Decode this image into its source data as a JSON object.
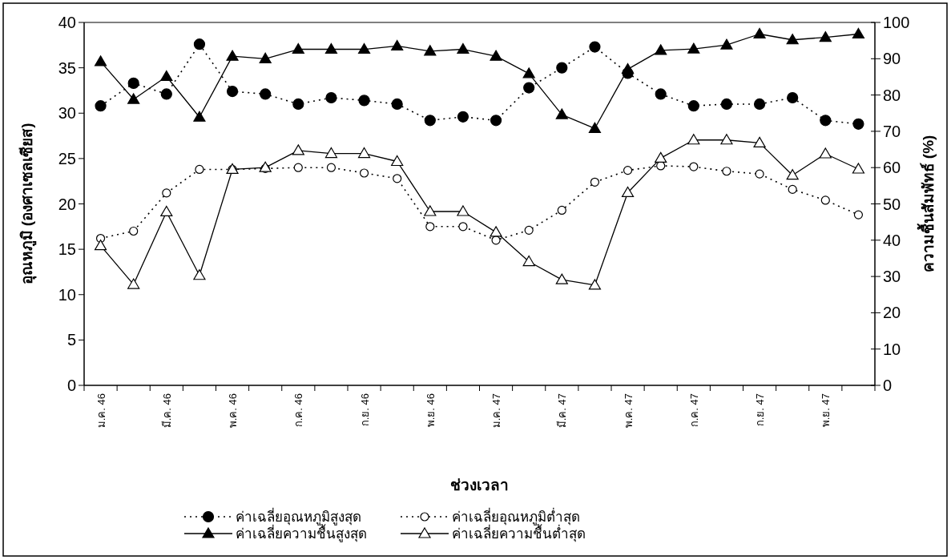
{
  "chart_data": {
    "type": "line",
    "xlabel": "ช่วงเวลา",
    "ylabel": "อุณหภูมิ (องศาเซลเซียส)",
    "y2label": "ความชื้นสัมพัทธ์ (%)",
    "categories": [
      "ม.ค. 46",
      null,
      "มี.ค. 46",
      null,
      "พ.ค. 46",
      null,
      "ก.ค. 46",
      null,
      "ก.ย. 46",
      null,
      "พ.ย. 46",
      null,
      "ม.ค. 47",
      null,
      "มี.ค. 47",
      null,
      "พ.ค. 47",
      null,
      "ก.ค. 47",
      null,
      "ก.ย. 47",
      null,
      "พ.ย. 47",
      null
    ],
    "ylim": [
      0,
      40
    ],
    "yticks": [
      0,
      5,
      10,
      15,
      20,
      25,
      30,
      35,
      40
    ],
    "y2lim": [
      0,
      100
    ],
    "y2ticks": [
      0,
      10,
      20,
      30,
      40,
      50,
      60,
      70,
      80,
      90,
      100
    ],
    "grid": false,
    "legend": "bottom",
    "series": [
      {
        "name": "ค่าเฉลี่ยอุณหภูมิสูงสุด",
        "color": "#000000",
        "marker": "circle",
        "line_style": "dotted",
        "values": [
          30.8,
          33.3,
          32.1,
          37.6,
          32.4,
          32.1,
          31.0,
          31.7,
          31.4,
          31.0,
          29.2,
          29.6,
          29.2,
          32.8,
          35.0,
          37.3,
          34.4,
          32.1,
          30.8,
          31.0,
          31.0,
          31.7,
          29.2,
          28.8
        ]
      },
      {
        "name": "ค่าเฉลี่ยอุณหภูมิต่ำสุด",
        "color": "#000000",
        "marker": "circle",
        "line_style": "dotted",
        "values": [
          16.2,
          17.0,
          21.2,
          23.8,
          23.8,
          23.9,
          24.0,
          24.0,
          23.4,
          22.8,
          17.5,
          17.5,
          16.0,
          17.1,
          19.3,
          22.4,
          23.7,
          24.2,
          24.1,
          23.6,
          23.3,
          21.6,
          20.4,
          18.8
        ]
      },
      {
        "name": "ค่าเฉลี่ยความชื้นสูงสุด",
        "color": "#000000",
        "marker": "triangle",
        "line_style": "solid",
        "axis": "y2",
        "values": [
          89.2,
          78.8,
          85.1,
          73.9,
          90.7,
          90.0,
          92.6,
          92.6,
          92.6,
          93.5,
          92.1,
          92.6,
          90.7,
          85.9,
          74.6,
          70.8,
          87.1,
          92.3,
          92.7,
          93.8,
          96.8,
          95.2,
          95.9,
          96.8
        ]
      },
      {
        "name": "ค่าเฉลี่ยความชื้นต่ำสุด",
        "color": "#000000",
        "marker": "triangle",
        "line_style": "solid",
        "axis": "y2",
        "values": [
          38.5,
          27.8,
          47.8,
          30.3,
          59.5,
          60.0,
          64.7,
          63.9,
          63.9,
          61.7,
          47.9,
          47.9,
          42.2,
          34.1,
          29.1,
          27.6,
          53.1,
          62.6,
          67.6,
          67.6,
          66.8,
          57.9,
          63.8,
          59.6
        ]
      }
    ]
  }
}
